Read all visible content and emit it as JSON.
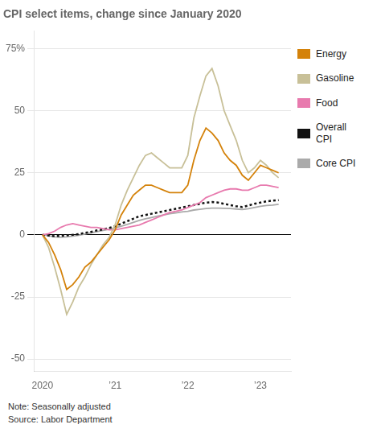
{
  "chart_data": {
    "type": "line",
    "title": "CPI select items, change since January 2020",
    "note": "Note: Seasonally adjusted",
    "source": "Source: Labor Department",
    "x": [
      2020.0,
      2020.083,
      2020.167,
      2020.25,
      2020.333,
      2020.417,
      2020.5,
      2020.583,
      2020.667,
      2020.75,
      2020.833,
      2020.917,
      2021.0,
      2021.083,
      2021.167,
      2021.25,
      2021.333,
      2021.417,
      2021.5,
      2021.583,
      2021.667,
      2021.75,
      2021.833,
      2021.917,
      2022.0,
      2022.083,
      2022.167,
      2022.25,
      2022.333,
      2022.417,
      2022.5,
      2022.583,
      2022.667,
      2022.75,
      2022.833,
      2022.917,
      2023.0,
      2023.083,
      2023.167,
      2023.25
    ],
    "series": [
      {
        "name": "Energy",
        "color": "#D4820A",
        "line_style": "solid",
        "values": [
          0,
          -3,
          -8,
          -14,
          -22,
          -20,
          -17,
          -13,
          -11,
          -8,
          -5,
          -2,
          2,
          8,
          12,
          16,
          18,
          20,
          20,
          19,
          18,
          17,
          17,
          17,
          20,
          30,
          38,
          43,
          41,
          38,
          33,
          30,
          28,
          24,
          22,
          25,
          28,
          27,
          26,
          25
        ]
      },
      {
        "name": "Gasoline",
        "color": "#C8C098",
        "line_style": "solid",
        "values": [
          0,
          -5,
          -13,
          -22,
          -32,
          -27,
          -21,
          -17,
          -12,
          -8,
          -4,
          -1,
          4,
          12,
          18,
          23,
          28,
          32,
          33,
          31,
          29,
          27,
          27,
          27,
          32,
          47,
          56,
          64,
          67,
          60,
          50,
          44,
          38,
          30,
          25,
          27,
          30,
          28,
          25,
          23
        ]
      },
      {
        "name": "Food",
        "color": "#E87AAE",
        "line_style": "solid",
        "values": [
          0,
          0.5,
          1.5,
          3,
          4,
          4.5,
          4,
          3.5,
          3,
          3,
          2.5,
          2,
          2,
          2.5,
          3,
          3.5,
          4,
          5,
          6,
          7,
          8,
          9,
          9.5,
          10,
          11,
          12,
          13,
          15,
          16,
          17,
          18,
          18.5,
          18.5,
          18,
          18,
          19,
          20,
          20,
          19.5,
          19
        ]
      },
      {
        "name": "Overall\nCPI",
        "color": "#111111",
        "line_style": "dotted",
        "values": [
          0,
          -0.3,
          -0.5,
          -0.4,
          -0.2,
          0,
          0.3,
          0.8,
          1.2,
          1.8,
          2.2,
          2.8,
          3.5,
          4.5,
          5.5,
          6.5,
          7.5,
          8.0,
          8.5,
          9.0,
          9.5,
          10.0,
          10.5,
          11.0,
          11.5,
          12.0,
          12.5,
          13.0,
          13.2,
          13.0,
          12.5,
          12.0,
          11.5,
          11.2,
          11.8,
          12.5,
          13.0,
          13.5,
          13.8,
          14.0
        ]
      },
      {
        "name": "Core CPI",
        "color": "#AAAAAA",
        "line_style": "solid",
        "values": [
          0,
          -0.3,
          -0.8,
          -1.0,
          -0.8,
          -0.5,
          -0.2,
          0.3,
          0.8,
          1.3,
          1.8,
          2.3,
          2.8,
          3.5,
          4.2,
          5.0,
          5.8,
          6.5,
          7.0,
          7.5,
          8.0,
          8.5,
          8.8,
          9.2,
          9.5,
          10.0,
          10.3,
          10.6,
          10.8,
          10.8,
          10.7,
          10.6,
          10.4,
          10.2,
          10.5,
          11.0,
          11.5,
          11.8,
          12.0,
          12.3
        ]
      }
    ],
    "xlim": [
      2019.88,
      2023.42
    ],
    "xticks": [
      2020,
      {
        "value": 2021,
        "label": "’21"
      },
      {
        "value": 2022,
        "label": "’22"
      },
      {
        "value": 2023,
        "label": "’23"
      }
    ],
    "ylim": [
      -55,
      82
    ],
    "yticks": [
      -50,
      -25,
      0,
      25,
      50,
      {
        "value": 75,
        "label": "75%"
      }
    ],
    "grid": "y",
    "legend": "right"
  }
}
